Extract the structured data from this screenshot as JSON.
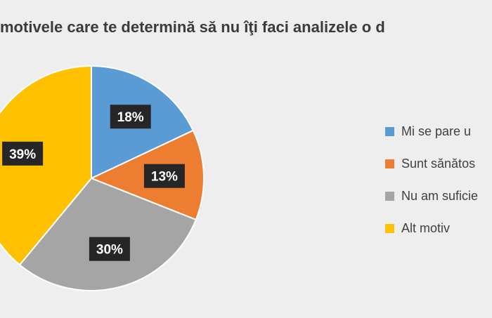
{
  "chart_data": {
    "type": "pie",
    "title": "motivele care te determină să nu îţi faci analizele o d",
    "series": [
      {
        "name": "Mi se pare u",
        "value": 18,
        "label": "18%",
        "color": "#5b9bd5"
      },
      {
        "name": "Sunt sănătos",
        "value": 13,
        "label": "13%",
        "color": "#ed7d31"
      },
      {
        "name": "Nu am suficie",
        "value": 30,
        "label": "30%",
        "color": "#a5a5a5"
      },
      {
        "name": "Alt motiv",
        "value": 39,
        "label": "39%",
        "color": "#ffc000"
      }
    ],
    "legend_position": "right",
    "data_label_background": "#262626",
    "data_label_color": "#ffffff",
    "background": "#eeeeee"
  }
}
